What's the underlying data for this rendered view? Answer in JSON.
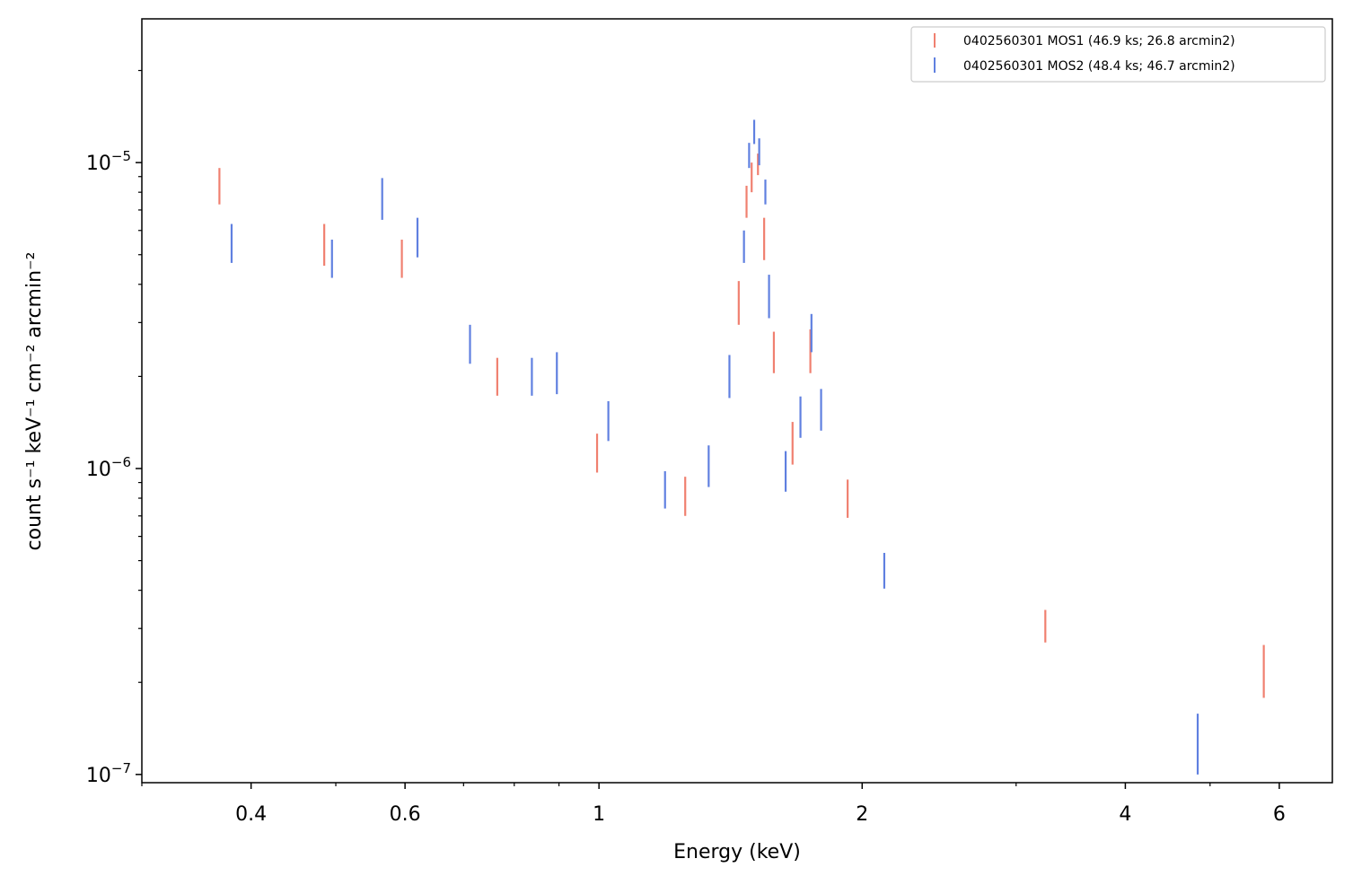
{
  "chart_data": {
    "type": "scatter",
    "title": "",
    "xlabel": "Energy (keV)",
    "ylabel": "count s⁻¹ keV⁻¹ cm⁻² arcmin⁻²",
    "xscale": "log",
    "yscale": "log",
    "xlim": [
      0.3,
      6.9
    ],
    "ylim": [
      9.4e-08,
      2.95e-05
    ],
    "grid": false,
    "legend": "top-right",
    "x_ticks": [
      {
        "value": 0.4,
        "label": "0.4"
      },
      {
        "value": 0.6,
        "label": "0.6"
      },
      {
        "value": 1,
        "label": "1"
      },
      {
        "value": 2,
        "label": "2"
      },
      {
        "value": 4,
        "label": "4"
      },
      {
        "value": 6,
        "label": "6"
      }
    ],
    "x_minor_ticks": [
      0.3,
      0.5,
      0.7,
      0.8,
      0.9,
      3,
      5
    ],
    "y_ticks": [
      {
        "value": 1e-07,
        "label_base": "10",
        "label_exp": "−7"
      },
      {
        "value": 1e-06,
        "label_base": "10",
        "label_exp": "−6"
      },
      {
        "value": 1e-05,
        "label_base": "10",
        "label_exp": "−5"
      }
    ],
    "y_minor_ticks": [
      2e-07,
      3e-07,
      4e-07,
      5e-07,
      6e-07,
      7e-07,
      8e-07,
      9e-07,
      2e-06,
      3e-06,
      4e-06,
      5e-06,
      6e-06,
      7e-06,
      8e-06,
      9e-06,
      2e-05
    ],
    "series": [
      {
        "name": "0402560301 MOS1 (46.9 ks; 26.8 arcmin2)",
        "color": "#f08070",
        "points": [
          {
            "x": 0.368,
            "ylo": 7.3e-06,
            "yhi": 9.6e-06
          },
          {
            "x": 0.485,
            "ylo": 4.6e-06,
            "yhi": 6.3e-06
          },
          {
            "x": 0.595,
            "ylo": 4.2e-06,
            "yhi": 5.6e-06
          },
          {
            "x": 0.765,
            "ylo": 1.73e-06,
            "yhi": 2.3e-06
          },
          {
            "x": 0.995,
            "ylo": 9.7e-07,
            "yhi": 1.3e-06
          },
          {
            "x": 1.255,
            "ylo": 7e-07,
            "yhi": 9.4e-07
          },
          {
            "x": 1.445,
            "ylo": 2.95e-06,
            "yhi": 4.1e-06
          },
          {
            "x": 1.475,
            "ylo": 6.6e-06,
            "yhi": 8.4e-06
          },
          {
            "x": 1.495,
            "ylo": 8e-06,
            "yhi": 1e-05
          },
          {
            "x": 1.52,
            "ylo": 9.1e-06,
            "yhi": 1.07e-05
          },
          {
            "x": 1.545,
            "ylo": 4.8e-06,
            "yhi": 6.6e-06
          },
          {
            "x": 1.585,
            "ylo": 2.05e-06,
            "yhi": 2.8e-06
          },
          {
            "x": 1.665,
            "ylo": 1.03e-06,
            "yhi": 1.42e-06
          },
          {
            "x": 1.745,
            "ylo": 2.05e-06,
            "yhi": 2.85e-06
          },
          {
            "x": 1.925,
            "ylo": 6.9e-07,
            "yhi": 9.2e-07
          },
          {
            "x": 3.24,
            "ylo": 2.7e-07,
            "yhi": 3.45e-07
          },
          {
            "x": 5.76,
            "ylo": 1.78e-07,
            "yhi": 2.65e-07
          }
        ]
      },
      {
        "name": "0402560301 MOS2 (48.4 ks; 46.7 arcmin2)",
        "color": "#6080e0",
        "points": [
          {
            "x": 0.38,
            "ylo": 4.7e-06,
            "yhi": 6.3e-06
          },
          {
            "x": 0.495,
            "ylo": 4.2e-06,
            "yhi": 5.6e-06
          },
          {
            "x": 0.565,
            "ylo": 6.5e-06,
            "yhi": 8.9e-06
          },
          {
            "x": 0.62,
            "ylo": 4.9e-06,
            "yhi": 6.6e-06
          },
          {
            "x": 0.712,
            "ylo": 2.2e-06,
            "yhi": 2.95e-06
          },
          {
            "x": 0.838,
            "ylo": 1.73e-06,
            "yhi": 2.3e-06
          },
          {
            "x": 0.895,
            "ylo": 1.75e-06,
            "yhi": 2.4e-06
          },
          {
            "x": 1.025,
            "ylo": 1.23e-06,
            "yhi": 1.66e-06
          },
          {
            "x": 1.19,
            "ylo": 7.4e-07,
            "yhi": 9.8e-07
          },
          {
            "x": 1.335,
            "ylo": 8.7e-07,
            "yhi": 1.19e-06
          },
          {
            "x": 1.41,
            "ylo": 1.7e-06,
            "yhi": 2.35e-06
          },
          {
            "x": 1.465,
            "ylo": 4.7e-06,
            "yhi": 6e-06
          },
          {
            "x": 1.485,
            "ylo": 9.6e-06,
            "yhi": 1.16e-05
          },
          {
            "x": 1.505,
            "ylo": 1.15e-05,
            "yhi": 1.38e-05
          },
          {
            "x": 1.525,
            "ylo": 9.8e-06,
            "yhi": 1.2e-05
          },
          {
            "x": 1.55,
            "ylo": 7.3e-06,
            "yhi": 8.8e-06
          },
          {
            "x": 1.565,
            "ylo": 3.1e-06,
            "yhi": 4.3e-06
          },
          {
            "x": 1.635,
            "ylo": 8.4e-07,
            "yhi": 1.14e-06
          },
          {
            "x": 1.7,
            "ylo": 1.26e-06,
            "yhi": 1.72e-06
          },
          {
            "x": 1.75,
            "ylo": 2.4e-06,
            "yhi": 3.2e-06
          },
          {
            "x": 1.795,
            "ylo": 1.33e-06,
            "yhi": 1.82e-06
          },
          {
            "x": 2.12,
            "ylo": 4.05e-07,
            "yhi": 5.3e-07
          },
          {
            "x": 4.84,
            "ylo": 1e-07,
            "yhi": 1.58e-07
          }
        ]
      }
    ]
  }
}
